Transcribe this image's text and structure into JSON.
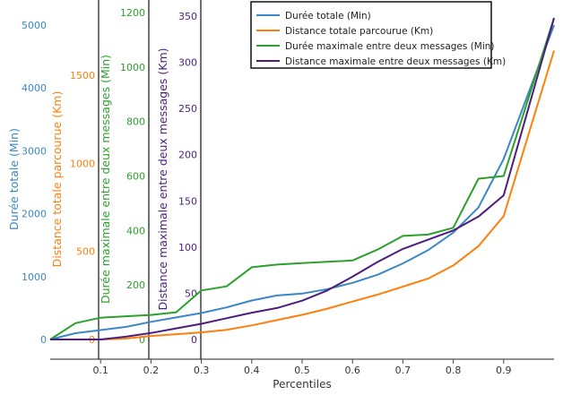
{
  "chart_data": {
    "type": "line",
    "xlabel": "Percentiles",
    "x_ticks": [
      "0.1",
      "0.2",
      "0.3",
      "0.4",
      "0.5",
      "0.6",
      "0.7",
      "0.8",
      "0.9"
    ],
    "x": [
      0.0,
      0.05,
      0.1,
      0.15,
      0.2,
      0.25,
      0.3,
      0.35,
      0.4,
      0.45,
      0.5,
      0.55,
      0.6,
      0.65,
      0.7,
      0.75,
      0.8,
      0.85,
      0.9,
      1.0
    ],
    "xlim": [
      0.0,
      1.0
    ],
    "legend_position": "top-right",
    "grid": false,
    "axes": [
      {
        "label": "Durée totale (Min)",
        "color": "#3b87c6",
        "ylim": [
          0,
          5200
        ],
        "ticks": [
          "0",
          "1000",
          "2000",
          "3000",
          "4000",
          "5000"
        ]
      },
      {
        "label": "Distance totale parcourue (Km)",
        "color": "#ff7f0e",
        "ylim": [
          0,
          1840
        ],
        "ticks": [
          "0",
          "500",
          "1000",
          "1500"
        ]
      },
      {
        "label": "Durée maximale entre deux messages (Min)",
        "color": "#2ca02c",
        "ylim": [
          0,
          1200
        ],
        "ticks": [
          "0",
          "200",
          "400",
          "600",
          "800",
          "1000",
          "1200"
        ]
      },
      {
        "label": "Distance maximale entre deux messages (Km)",
        "color": "#4b1e7d",
        "ylim": [
          0,
          350
        ],
        "ticks": [
          "0",
          "50",
          "100",
          "150",
          "200",
          "250",
          "300",
          "350"
        ]
      }
    ],
    "series": [
      {
        "name": "Durée totale (Min)",
        "axis": 0,
        "color": "#3b87c6",
        "values": [
          0,
          100,
          150,
          200,
          280,
          350,
          420,
          510,
          620,
          700,
          730,
          800,
          900,
          1030,
          1210,
          1420,
          1700,
          2100,
          2870,
          5000
        ]
      },
      {
        "name": "Distance totale parcourue (Km)",
        "axis": 1,
        "color": "#ff7f0e",
        "values": [
          0,
          0,
          0,
          5,
          20,
          30,
          40,
          55,
          80,
          110,
          140,
          175,
          215,
          255,
          300,
          345,
          420,
          530,
          700,
          1640
        ]
      },
      {
        "name": "Durée maximale entre deux messages (Min)",
        "axis": 2,
        "color": "#2ca02c",
        "values": [
          0,
          60,
          80,
          85,
          90,
          100,
          180,
          195,
          265,
          275,
          280,
          285,
          290,
          330,
          380,
          385,
          410,
          590,
          600,
          1180
        ]
      },
      {
        "name": "Distance maximale entre deux messages (Km)",
        "axis": 3,
        "color": "#4b1e7d",
        "values": [
          0,
          0,
          0,
          3,
          7,
          12,
          17,
          23,
          29,
          34,
          42,
          53,
          68,
          84,
          98,
          108,
          118,
          133,
          156,
          348
        ]
      }
    ]
  }
}
